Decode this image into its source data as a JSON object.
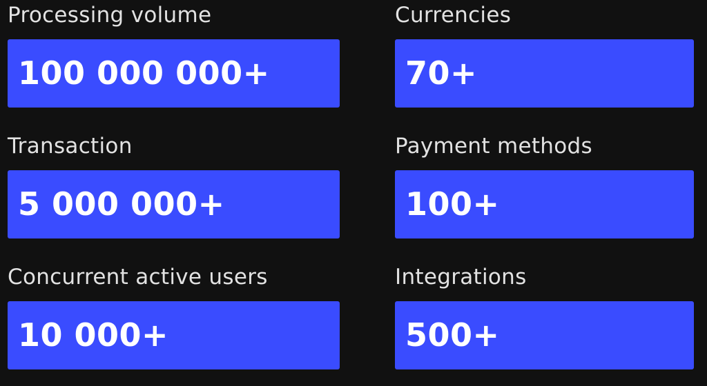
{
  "stats": [
    {
      "label": "Processing volume",
      "value": "100 000 000+"
    },
    {
      "label": "Currencies",
      "value": "70+"
    },
    {
      "label": "Transaction",
      "value": "5 000 000+"
    },
    {
      "label": "Payment methods",
      "value": "100+"
    },
    {
      "label": "Concurrent active users",
      "value": "10 000+"
    },
    {
      "label": "Integrations",
      "value": "500+"
    }
  ],
  "colors": {
    "background": "#111111",
    "box": "#3a4cff",
    "label": "#e2e2e2",
    "value": "#ffffff"
  }
}
